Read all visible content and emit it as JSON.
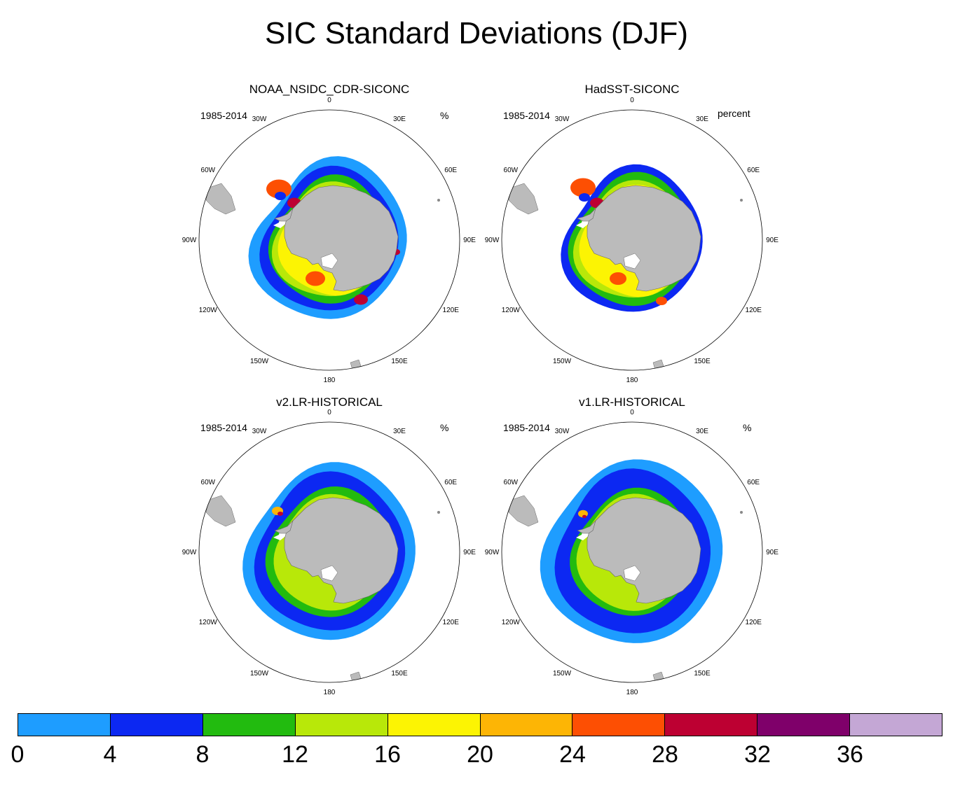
{
  "title": "SIC Standard Deviations (DJF)",
  "panels": [
    {
      "title": "NOAA_NSIDC_CDR-SICONC",
      "period": "1985-2014",
      "units": "%",
      "pattern": "obs1"
    },
    {
      "title": "HadSST-SICONC",
      "period": "1985-2014",
      "units": "percent",
      "pattern": "obs2"
    },
    {
      "title": "v2.LR-HISTORICAL",
      "period": "1985-2014",
      "units": "%",
      "pattern": "mod2"
    },
    {
      "title": "v1.LR-HISTORICAL",
      "period": "1985-2014",
      "units": "%",
      "pattern": "mod1"
    }
  ],
  "longitude_labels": {
    "top": "0",
    "top_right": "30E",
    "upper_right": "60E",
    "right": "90E",
    "lower_right": "120E",
    "bottom_right": "150E",
    "bottom": "180",
    "bottom_left": "150W",
    "lower_left": "120W",
    "left": "90W",
    "upper_left": "60W",
    "top_left": "30W"
  },
  "colorbar": {
    "colors": [
      "#1e9dff",
      "#0c28f2",
      "#22bb0f",
      "#b8e809",
      "#fcf403",
      "#fdb505",
      "#fd4f03",
      "#bd0032",
      "#7f006a",
      "#c4a7d5"
    ],
    "tick_labels": [
      "0",
      "4",
      "8",
      "12",
      "16",
      "20",
      "24",
      "28",
      "32",
      "36"
    ]
  }
}
